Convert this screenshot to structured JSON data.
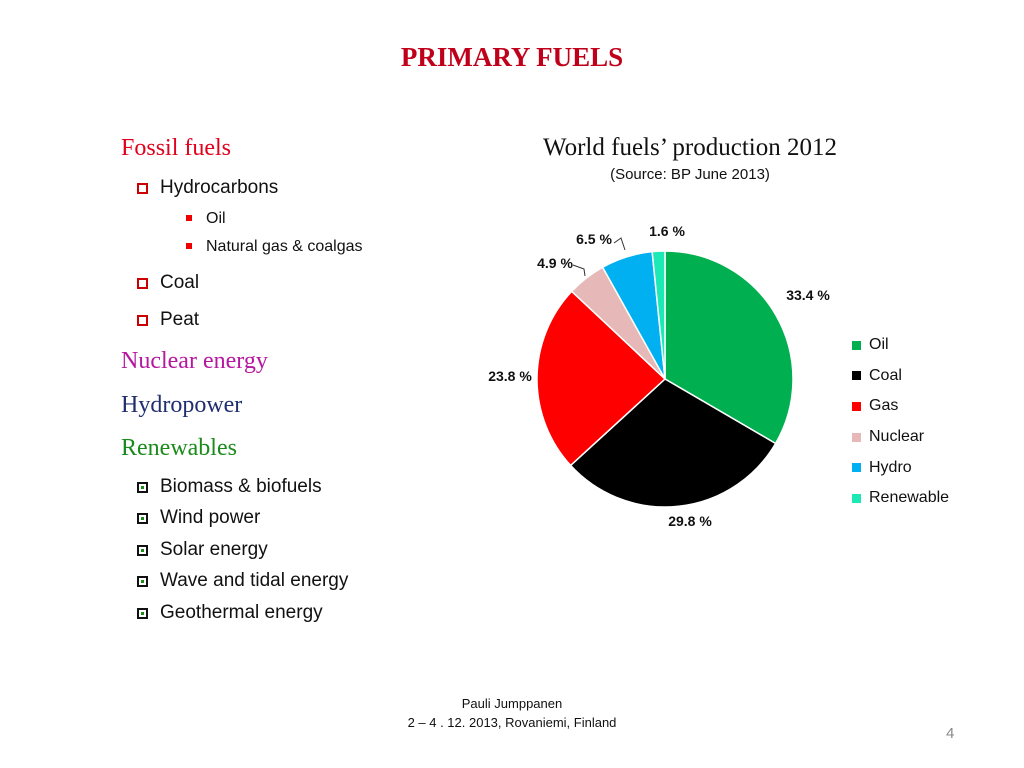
{
  "slide": {
    "title": "PRIMARY FUELS",
    "page_number": "4"
  },
  "left_list": {
    "fossil": "Fossil fuels",
    "hydrocarbons": "Hydrocarbons",
    "oil": "Oil",
    "natural_gas": "Natural gas & coalgas",
    "coal": "Coal",
    "peat": "Peat",
    "nuclear": "Nuclear energy",
    "hydropower": "Hydropower",
    "renewables": "Renewables",
    "biomass": "Biomass & biofuels",
    "wind": "Wind power",
    "solar": "Solar energy",
    "wave": "Wave and tidal energy",
    "geothermal": "Geothermal energy"
  },
  "colors": {
    "fossil": "#e3001b",
    "nuclear": "#b5179e",
    "hydropower": "#1f2e6e",
    "renewables": "#1a8a1a"
  },
  "footer": {
    "line1": "Pauli Jumppanen",
    "line2": "2 – 4 . 12. 2013, Rovaniemi, Finland"
  },
  "chart_data": {
    "type": "pie",
    "title": "World fuels’ production 2012",
    "subtitle": "(Source: BP June 2013)",
    "categories": [
      "Oil",
      "Coal",
      "Gas",
      "Nuclear",
      "Hydro",
      "Renewable"
    ],
    "values": [
      33.4,
      29.8,
      23.8,
      4.9,
      6.5,
      1.6
    ],
    "labels": [
      "33.4 %",
      "29.8 %",
      "23.8 %",
      "4.9 %",
      "6.5 %",
      "1.6 %"
    ],
    "colors": [
      "#00b050",
      "#000000",
      "#ff0000",
      "#e6b9b8",
      "#00b0f0",
      "#1de9b6"
    ],
    "legend_position": "right"
  }
}
